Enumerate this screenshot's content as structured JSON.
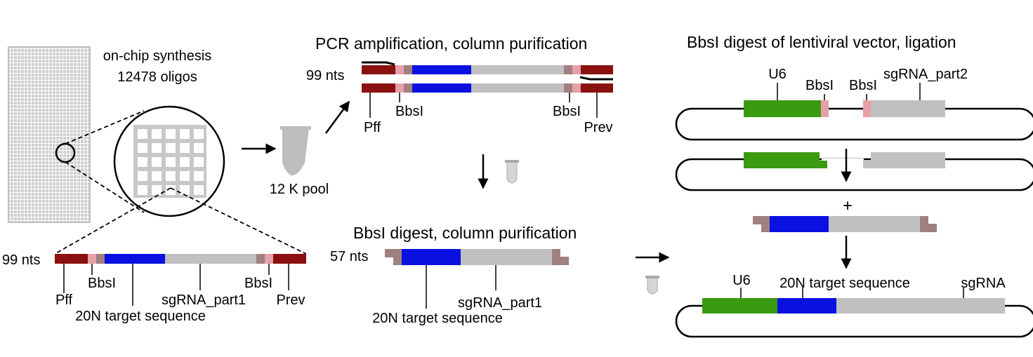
{
  "colors": {
    "primer": "#8b1010",
    "bbsi_site": "#e8a0a8",
    "spacer": "#a08080",
    "target": "#0a10e0",
    "scaffold": "#c0c0c0",
    "u6": "#3a9a10",
    "chip": "#c8c8c8",
    "tube": "#bdbdbd"
  },
  "chip": {
    "label_line1": "on-chip synthesis",
    "label_line2": "12478 oligos"
  },
  "pool": {
    "label": "12 K pool"
  },
  "oligo": {
    "length_label": "99 nts",
    "pff": "Pff",
    "bbsi_left": "BbsI",
    "target": "20N target sequence",
    "sgrna_part1": "sgRNA_part1",
    "bbsi_right": "BbsI",
    "prev": "Prev"
  },
  "pcr": {
    "title": "PCR amplification, column purification",
    "length_label": "99 nts",
    "pff": "Pff",
    "bbsi_left": "BbsI",
    "bbsi_right": "BbsI",
    "prev": "Prev"
  },
  "digest": {
    "title": "BbsI digest, column purification",
    "length_label": "57 nts",
    "sgrna_part1": "sgRNA_part1",
    "target": "20N target sequence"
  },
  "vector": {
    "title": "BbsI digest of lentiviral vector, ligation",
    "u6": "U6",
    "bbsi_left": "BbsI",
    "bbsi_right": "BbsI",
    "sgrna_part2": "sgRNA_part2",
    "plus": "+"
  },
  "final": {
    "u6": "U6",
    "target": "20N target sequence",
    "sgrna": "sgRNA"
  }
}
